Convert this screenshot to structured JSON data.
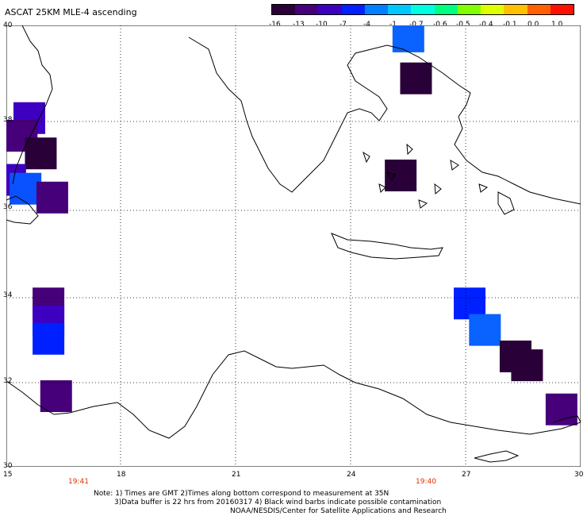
{
  "header": {
    "title": "ASCAT 25KM MLE-4 ascending"
  },
  "colorbar": {
    "ticks": [
      "-16",
      "-13",
      "-10",
      "-7",
      "-4",
      "-1",
      "-0.7",
      "-0.6",
      "-0.5",
      "-0.4",
      "-0.1",
      "0.0",
      "1.0"
    ],
    "colors": [
      "#2a0038",
      "#46007a",
      "#3d00c0",
      "#0020ff",
      "#0080ff",
      "#00c8ff",
      "#00ffe0",
      "#00ff80",
      "#80ff00",
      "#e0ff00",
      "#ffc000",
      "#ff6000",
      "#ff1000"
    ]
  },
  "axes": {
    "lat_labels": [
      "40",
      "38",
      "36",
      "34",
      "32",
      "30"
    ],
    "lon_labels": [
      "15",
      "18",
      "21",
      "24",
      "27",
      "30"
    ]
  },
  "times": [
    "19:41",
    "19:40"
  ],
  "notes": {
    "line1": "Note: 1) Times are GMT 2)Times along bottom correspond to measurement at 35N",
    "line2": "3)Data buffer is 22 hrs from 20160317 4) Black wind barbs indicate possible contamination",
    "line3": "NOAA/NESDIS/Center for Satellite Applications and Research"
  },
  "map": {
    "lon_range": [
      15,
      30
    ],
    "lat_range": [
      30,
      40
    ],
    "cells": [
      {
        "lon": 25.5,
        "lat": 39.75,
        "color": "#0a62ff"
      },
      {
        "lon": 25.7,
        "lat": 38.8,
        "color": "#2a0038"
      },
      {
        "lon": 25.3,
        "lat": 36.6,
        "color": "#2a0038"
      },
      {
        "lon": 15.6,
        "lat": 37.9,
        "color": "#3d00c0"
      },
      {
        "lon": 15.4,
        "lat": 37.5,
        "color": "#46007a"
      },
      {
        "lon": 15.9,
        "lat": 37.1,
        "color": "#2a0038"
      },
      {
        "lon": 15.1,
        "lat": 36.5,
        "color": "#3d00c0"
      },
      {
        "lon": 15.5,
        "lat": 36.3,
        "color": "#0a52ff"
      },
      {
        "lon": 16.2,
        "lat": 36.1,
        "color": "#46007a"
      },
      {
        "lon": 16.1,
        "lat": 33.7,
        "color": "#46007a"
      },
      {
        "lon": 16.1,
        "lat": 33.3,
        "color": "#3d00c0"
      },
      {
        "lon": 16.1,
        "lat": 32.9,
        "color": "#0020ff"
      },
      {
        "lon": 16.3,
        "lat": 31.6,
        "color": "#46007a"
      },
      {
        "lon": 27.1,
        "lat": 33.7,
        "color": "#0020ff"
      },
      {
        "lon": 27.5,
        "lat": 33.1,
        "color": "#0a62ff"
      },
      {
        "lon": 28.3,
        "lat": 32.5,
        "color": "#2a0038"
      },
      {
        "lon": 28.6,
        "lat": 32.3,
        "color": "#2a0038"
      },
      {
        "lon": 29.5,
        "lat": 31.3,
        "color": "#46007a"
      }
    ]
  }
}
